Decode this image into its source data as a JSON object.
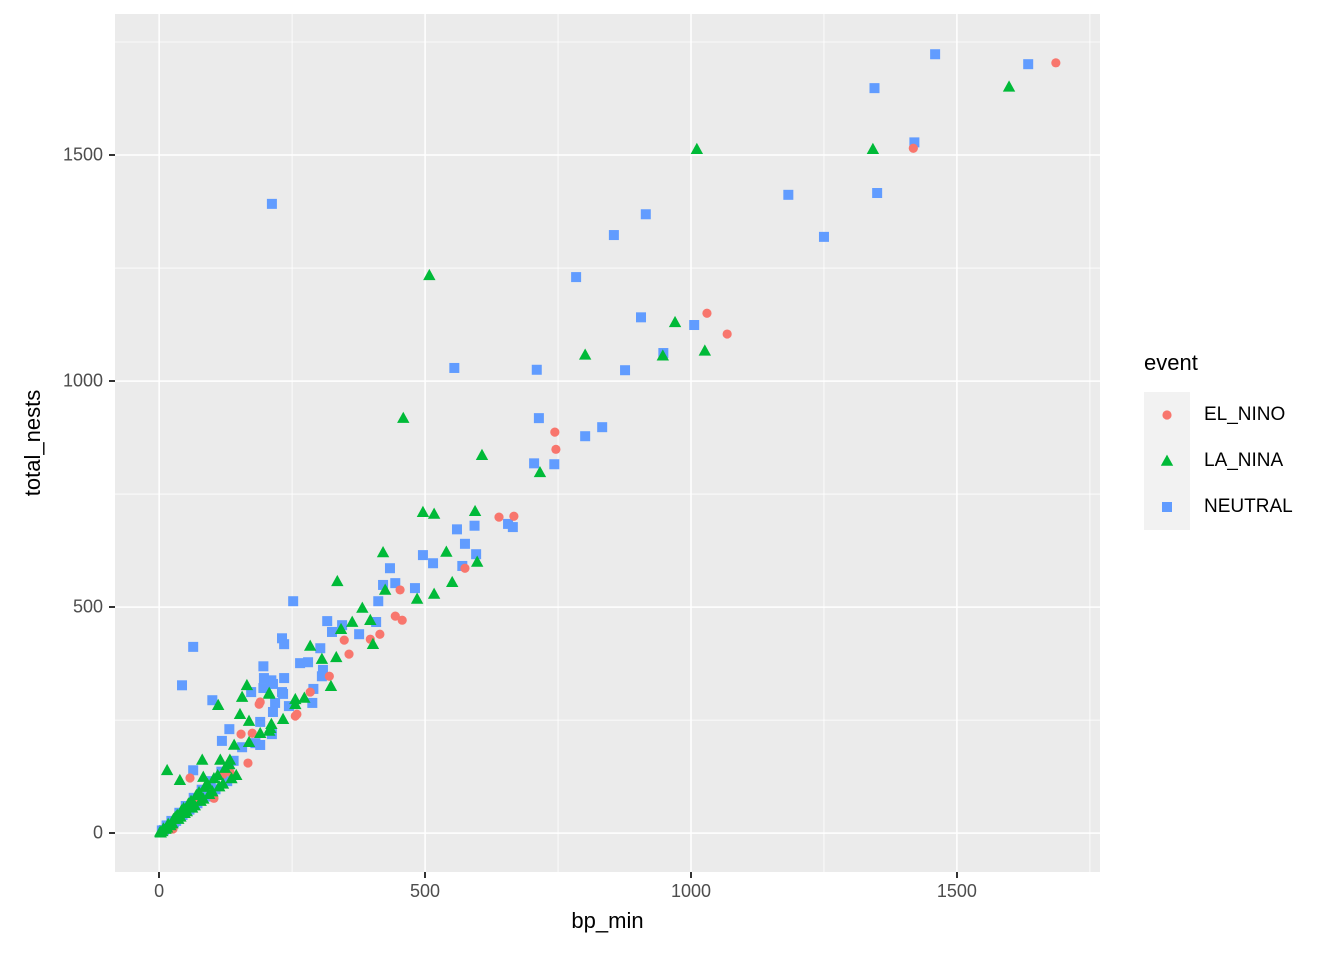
{
  "figure": {
    "background": "#FFFFFF",
    "panel_background": "#EBEBEB",
    "gridline_color": "#FFFFFF",
    "tick_mark_color": "#333333",
    "tick_label_color": "#4D4D4D",
    "axis_title_color": "#000000"
  },
  "legend": {
    "title": "event",
    "key_background": "#F2F2F2",
    "items": [
      {
        "label": "EL_NINO",
        "shape": "circle",
        "color": "#F8766D"
      },
      {
        "label": "LA_NINA",
        "shape": "triangle",
        "color": "#00BA38"
      },
      {
        "label": "NEUTRAL",
        "shape": "square",
        "color": "#619CFF"
      }
    ]
  },
  "chart_data": {
    "type": "scatter",
    "title": "",
    "xlabel": "bp_min",
    "ylabel": "total_nests",
    "legend_title": "event",
    "legend_position": "right",
    "grid": true,
    "x_ticks": [
      0,
      500,
      1000,
      1500
    ],
    "y_ticks": [
      0,
      500,
      1000,
      1500
    ],
    "x_minor_ticks": [
      250,
      750,
      1250,
      1750
    ],
    "y_minor_ticks": [
      250,
      750,
      1250,
      1750
    ],
    "xlim": [
      -83,
      1769
    ],
    "ylim": [
      -86,
      1812
    ],
    "series": [
      {
        "name": "NEUTRAL",
        "shape": "square",
        "color": "#619CFF",
        "points": [
          [
            1459,
            1723
          ],
          [
            1634,
            1701
          ],
          [
            1345,
            1648
          ],
          [
            1420,
            1528
          ],
          [
            1350,
            1416
          ],
          [
            1183,
            1412
          ],
          [
            1250,
            1319
          ],
          [
            915,
            1369
          ],
          [
            855,
            1323
          ],
          [
            784,
            1230
          ],
          [
            906,
            1141
          ],
          [
            1006,
            1124
          ],
          [
            948,
            1062
          ],
          [
            876,
            1024
          ],
          [
            710,
            1025
          ],
          [
            714,
            918
          ],
          [
            833,
            898
          ],
          [
            801,
            878
          ],
          [
            705,
            818
          ],
          [
            743,
            816
          ],
          [
            555,
            1029
          ],
          [
            212,
            1392
          ],
          [
            665,
            677
          ],
          [
            656,
            684
          ],
          [
            596,
            617
          ],
          [
            593,
            680
          ],
          [
            575,
            640
          ],
          [
            570,
            591
          ],
          [
            560,
            672
          ],
          [
            515,
            597
          ],
          [
            496,
            615
          ],
          [
            481,
            542
          ],
          [
            444,
            553
          ],
          [
            434,
            586
          ],
          [
            421,
            549
          ],
          [
            412,
            513
          ],
          [
            408,
            467
          ],
          [
            376,
            440
          ],
          [
            344,
            460
          ],
          [
            325,
            445
          ],
          [
            316,
            469
          ],
          [
            308,
            361
          ],
          [
            306,
            347
          ],
          [
            303,
            409
          ],
          [
            290,
            319
          ],
          [
            288,
            288
          ],
          [
            280,
            378
          ],
          [
            265,
            376
          ],
          [
            252,
            513
          ],
          [
            244,
            281
          ],
          [
            235,
            418
          ],
          [
            235,
            343
          ],
          [
            233,
            308
          ],
          [
            231,
            431
          ],
          [
            231,
            312
          ],
          [
            218,
            288
          ],
          [
            214,
            330
          ],
          [
            214,
            268
          ],
          [
            212,
            219
          ],
          [
            211,
            338
          ],
          [
            197,
            343
          ],
          [
            196,
            369
          ],
          [
            196,
            321
          ],
          [
            190,
            246
          ],
          [
            190,
            195
          ],
          [
            181,
            199
          ],
          [
            173,
            312
          ],
          [
            156,
            190
          ],
          [
            132,
            230
          ],
          [
            118,
            204
          ],
          [
            100,
            294
          ],
          [
            96,
            111
          ],
          [
            64,
            412
          ],
          [
            64,
            139
          ],
          [
            43,
            327
          ],
          [
            5,
            6
          ],
          [
            9,
            7
          ],
          [
            14,
            17
          ],
          [
            18,
            15
          ],
          [
            23,
            27
          ],
          [
            28,
            24
          ],
          [
            32,
            27
          ],
          [
            38,
            45
          ],
          [
            44,
            40
          ],
          [
            50,
            60
          ],
          [
            57,
            52
          ],
          [
            65,
            78
          ],
          [
            72,
            66
          ],
          [
            80,
            96
          ],
          [
            88,
            81
          ],
          [
            97,
            115
          ],
          [
            106,
            97
          ],
          [
            117,
            136
          ],
          [
            128,
            115
          ],
          [
            140,
            160
          ]
        ]
      },
      {
        "name": "EL_NINO",
        "shape": "circle",
        "color": "#F8766D",
        "points": [
          [
            1686,
            1704
          ],
          [
            1418,
            1515
          ],
          [
            1068,
            1104
          ],
          [
            1030,
            1150
          ],
          [
            746,
            849
          ],
          [
            744,
            887
          ],
          [
            667,
            701
          ],
          [
            639,
            699
          ],
          [
            575,
            586
          ],
          [
            453,
            538
          ],
          [
            457,
            471
          ],
          [
            444,
            480
          ],
          [
            415,
            440
          ],
          [
            397,
            429
          ],
          [
            357,
            396
          ],
          [
            348,
            427
          ],
          [
            320,
            347
          ],
          [
            284,
            312
          ],
          [
            259,
            263
          ],
          [
            256,
            259
          ],
          [
            190,
            290
          ],
          [
            188,
            285
          ],
          [
            175,
            221
          ],
          [
            167,
            155
          ],
          [
            154,
            219
          ],
          [
            133,
            135
          ],
          [
            120,
            130
          ],
          [
            103,
            77
          ],
          [
            70,
            75
          ],
          [
            58,
            122
          ],
          [
            35,
            30
          ],
          [
            26,
            9
          ],
          [
            10,
            5
          ]
        ]
      },
      {
        "name": "LA_NINA",
        "shape": "triangle",
        "color": "#00BA38",
        "points": [
          [
            1598,
            1651
          ],
          [
            1342,
            1513
          ],
          [
            1011,
            1513
          ],
          [
            1026,
            1067
          ],
          [
            970,
            1130
          ],
          [
            947,
            1056
          ],
          [
            801,
            1058
          ],
          [
            716,
            798
          ],
          [
            607,
            836
          ],
          [
            598,
            600
          ],
          [
            594,
            712
          ],
          [
            551,
            555
          ],
          [
            540,
            622
          ],
          [
            517,
            706
          ],
          [
            517,
            529
          ],
          [
            508,
            1234
          ],
          [
            496,
            710
          ],
          [
            485,
            518
          ],
          [
            459,
            918
          ],
          [
            425,
            538
          ],
          [
            421,
            621
          ],
          [
            402,
            418
          ],
          [
            397,
            471
          ],
          [
            382,
            498
          ],
          [
            363,
            467
          ],
          [
            342,
            451
          ],
          [
            335,
            557
          ],
          [
            333,
            389
          ],
          [
            323,
            325
          ],
          [
            306,
            385
          ],
          [
            284,
            414
          ],
          [
            273,
            299
          ],
          [
            256,
            296
          ],
          [
            256,
            285
          ],
          [
            233,
            252
          ],
          [
            211,
            241
          ],
          [
            209,
            232
          ],
          [
            207,
            310
          ],
          [
            207,
            308
          ],
          [
            207,
            226
          ],
          [
            190,
            221
          ],
          [
            169,
            248
          ],
          [
            169,
            201
          ],
          [
            165,
            327
          ],
          [
            156,
            301
          ],
          [
            152,
            263
          ],
          [
            141,
            195
          ],
          [
            133,
            162
          ],
          [
            115,
            162
          ],
          [
            111,
            283
          ],
          [
            83,
            124
          ],
          [
            81,
            162
          ],
          [
            39,
            117
          ],
          [
            15,
            139
          ],
          [
            2,
            3
          ],
          [
            3,
            1
          ],
          [
            6,
            4
          ],
          [
            8,
            10
          ],
          [
            12,
            9
          ],
          [
            15,
            12
          ],
          [
            17,
            20
          ],
          [
            21,
            17
          ],
          [
            25,
            21
          ],
          [
            27,
            31
          ],
          [
            30,
            35
          ],
          [
            34,
            40
          ],
          [
            36,
            31
          ],
          [
            40,
            36
          ],
          [
            42,
            50
          ],
          [
            46,
            55
          ],
          [
            48,
            44
          ],
          [
            52,
            48
          ],
          [
            55,
            65
          ],
          [
            60,
            71
          ],
          [
            62,
            56
          ],
          [
            67,
            61
          ],
          [
            70,
            84
          ],
          [
            75,
            90
          ],
          [
            78,
            71
          ],
          [
            83,
            76
          ],
          [
            86,
            102
          ],
          [
            91,
            108
          ],
          [
            94,
            86
          ],
          [
            100,
            92
          ],
          [
            103,
            121
          ],
          [
            110,
            128
          ],
          [
            113,
            103
          ],
          [
            120,
            109
          ],
          [
            124,
            144
          ],
          [
            132,
            152
          ],
          [
            136,
            121
          ],
          [
            145,
            128
          ]
        ]
      }
    ]
  }
}
